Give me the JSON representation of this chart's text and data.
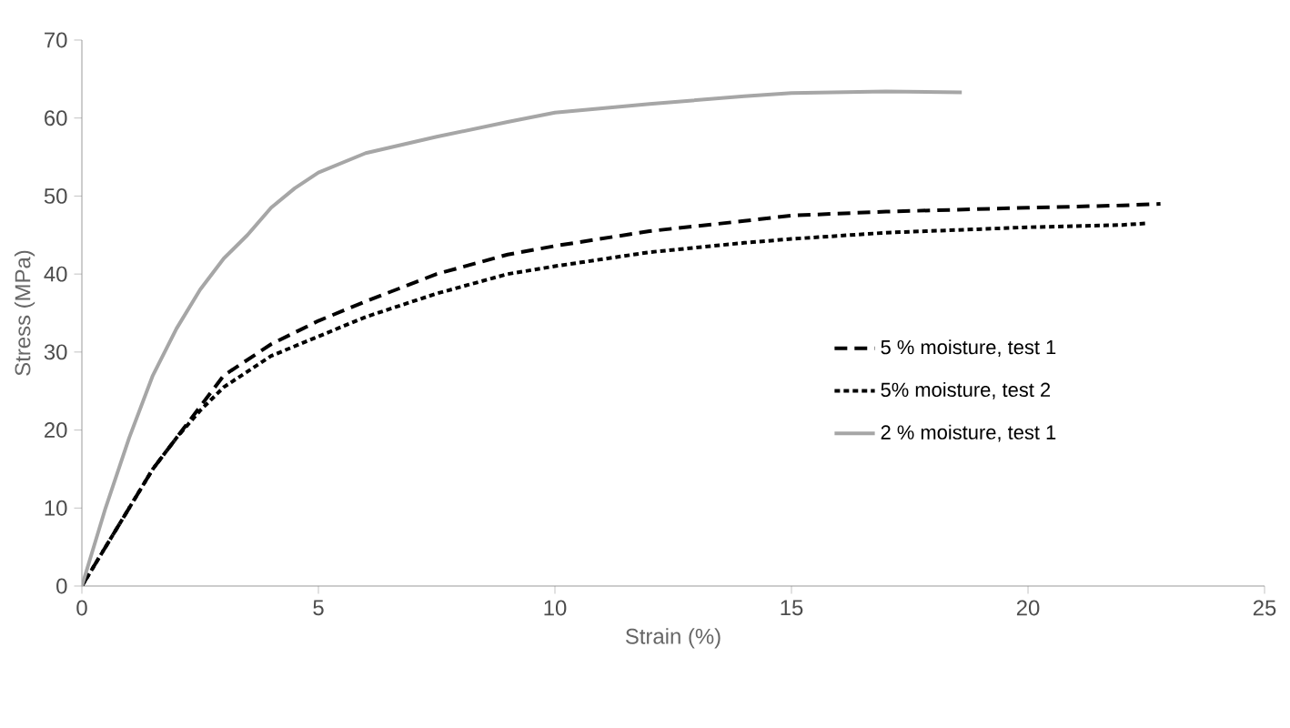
{
  "chart_data": {
    "type": "line",
    "xlabel": "Strain (%)",
    "ylabel": "Stress (MPa)",
    "xlim": [
      0,
      25
    ],
    "ylim": [
      0,
      70
    ],
    "xticks": [
      0,
      5,
      10,
      15,
      20,
      25
    ],
    "yticks": [
      0,
      10,
      20,
      30,
      40,
      50,
      60,
      70
    ],
    "grid": false,
    "legend": "right",
    "marker": "none",
    "series": [
      {
        "name": "5 % moisture, test 1",
        "color": "#000000",
        "line_style": "dashed",
        "x": [
          0,
          0.5,
          1,
          1.5,
          2,
          2.5,
          3,
          4,
          5,
          6,
          7.5,
          9,
          10,
          12,
          14,
          15,
          17,
          20,
          22,
          22.8
        ],
        "values": [
          0,
          5,
          10,
          15,
          19,
          23,
          27,
          31,
          34,
          36.5,
          40,
          42.5,
          43.6,
          45.5,
          46.8,
          47.5,
          48,
          48.5,
          48.8,
          49
        ]
      },
      {
        "name": "5% moisture, test 2",
        "color": "#000000",
        "line_style": "dotted",
        "x": [
          0,
          0.5,
          1,
          1.5,
          2,
          2.5,
          3,
          4,
          5,
          6,
          7.5,
          9,
          10,
          12,
          14,
          15,
          17,
          20,
          22,
          22.5
        ],
        "values": [
          0,
          5,
          10,
          15,
          19,
          22.5,
          25.5,
          29.5,
          32,
          34.5,
          37.5,
          40,
          41,
          42.8,
          44,
          44.5,
          45.3,
          46,
          46.3,
          46.5
        ]
      },
      {
        "name": "2 % moisture, test 1",
        "color": "#a6a6a6",
        "line_style": "solid",
        "x": [
          0,
          0.5,
          1,
          1.5,
          2,
          2.5,
          3,
          3.5,
          4,
          4.5,
          5,
          6,
          7.5,
          9,
          10,
          12,
          14,
          15,
          17,
          18.6
        ],
        "values": [
          0,
          10,
          19,
          27,
          33,
          38,
          42,
          45,
          48.5,
          51,
          53,
          55.5,
          57.6,
          59.5,
          60.7,
          61.8,
          62.8,
          63.2,
          63.4,
          63.3
        ]
      }
    ]
  }
}
